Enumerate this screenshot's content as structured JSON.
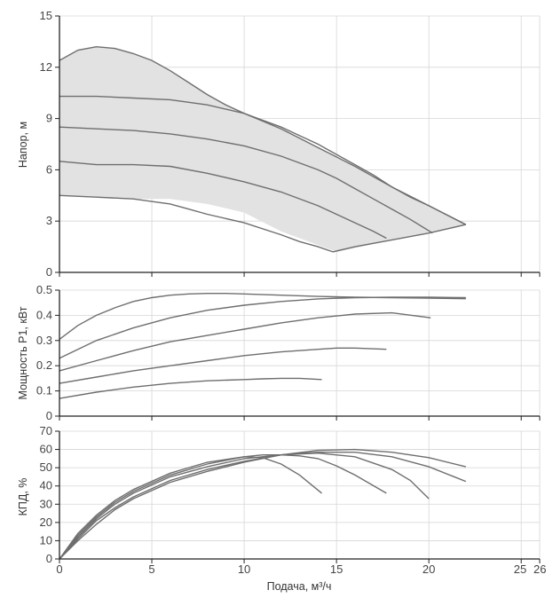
{
  "chart_data": [
    {
      "type": "line",
      "name": "head",
      "ylabel": "Напор, м",
      "ylim": [
        0,
        15
      ],
      "yticks": [
        0,
        3,
        6,
        9,
        12,
        15
      ],
      "envelope": [
        [
          0,
          12.4
        ],
        [
          1,
          13.0
        ],
        [
          2,
          13.2
        ],
        [
          3,
          13.1
        ],
        [
          4,
          12.8
        ],
        [
          5,
          12.4
        ],
        [
          6,
          11.8
        ],
        [
          7,
          11.1
        ],
        [
          8,
          10.4
        ],
        [
          10,
          9.3
        ],
        [
          12,
          8.4
        ],
        [
          14,
          7.3
        ],
        [
          16,
          6.2
        ],
        [
          18,
          5.0
        ],
        [
          20,
          3.9
        ],
        [
          22,
          2.8
        ],
        [
          15,
          1.2
        ],
        [
          12,
          2.4
        ],
        [
          10,
          3.5
        ],
        [
          8,
          4.0
        ],
        [
          6,
          4.3
        ],
        [
          4,
          4.3
        ],
        [
          2,
          4.4
        ],
        [
          0,
          4.5
        ]
      ],
      "series": [
        {
          "name": "max",
          "x": [
            0,
            1,
            2,
            3,
            4,
            5,
            6,
            7,
            8,
            9,
            10,
            11,
            12,
            13,
            14,
            15,
            16,
            17,
            18,
            19,
            20,
            21,
            22
          ],
          "y": [
            12.4,
            13.0,
            13.2,
            13.1,
            12.8,
            12.4,
            11.8,
            11.1,
            10.4,
            9.8,
            9.3,
            8.85,
            8.4,
            7.85,
            7.3,
            6.75,
            6.2,
            5.6,
            5.0,
            4.45,
            3.9,
            3.35,
            2.8
          ]
        },
        {
          "name": "curve-4",
          "x": [
            0,
            2,
            4,
            6,
            8,
            10,
            11,
            12,
            13,
            14,
            15,
            16,
            17,
            18,
            19,
            20,
            21,
            22
          ],
          "y": [
            10.3,
            10.3,
            10.2,
            10.1,
            9.8,
            9.3,
            8.9,
            8.5,
            8.0,
            7.5,
            6.9,
            6.3,
            5.7,
            5.0,
            4.4,
            3.9,
            3.35,
            2.8
          ]
        },
        {
          "name": "curve-3",
          "x": [
            0,
            2,
            4,
            6,
            8,
            10,
            12,
            14,
            15,
            16,
            17,
            18,
            19,
            20.2
          ],
          "y": [
            8.5,
            8.4,
            8.3,
            8.1,
            7.8,
            7.4,
            6.8,
            6.0,
            5.5,
            4.9,
            4.3,
            3.7,
            3.1,
            2.3
          ]
        },
        {
          "name": "curve-2",
          "x": [
            0,
            1,
            2,
            4,
            6,
            8,
            10,
            12,
            14,
            15,
            16,
            17,
            17.7
          ],
          "y": [
            6.5,
            6.4,
            6.3,
            6.3,
            6.2,
            5.8,
            5.3,
            4.7,
            3.9,
            3.4,
            2.9,
            2.4,
            2.0
          ]
        },
        {
          "name": "curve-1",
          "x": [
            0,
            2,
            4,
            6,
            7,
            8,
            10,
            12,
            13,
            14,
            14.8
          ],
          "y": [
            4.5,
            4.4,
            4.3,
            4.0,
            3.7,
            3.4,
            2.9,
            2.2,
            1.8,
            1.5,
            1.2
          ]
        },
        {
          "name": "min-boundary",
          "x": [
            14.8,
            16,
            18,
            20,
            22
          ],
          "y": [
            1.2,
            1.5,
            1.9,
            2.3,
            2.8
          ]
        }
      ]
    },
    {
      "type": "line",
      "name": "power",
      "ylabel": "Мощность P1, кВт",
      "ylim": [
        0,
        0.5
      ],
      "yticks": [
        0,
        0.1,
        0.2,
        0.3,
        0.4,
        0.5
      ],
      "series": [
        {
          "name": "curve-5",
          "x": [
            0,
            1,
            2,
            3,
            4,
            5,
            6,
            7,
            8,
            9,
            10,
            12,
            14,
            16,
            18,
            20,
            22
          ],
          "y": [
            0.305,
            0.36,
            0.4,
            0.43,
            0.455,
            0.47,
            0.48,
            0.485,
            0.487,
            0.487,
            0.485,
            0.48,
            0.475,
            0.472,
            0.47,
            0.468,
            0.466
          ]
        },
        {
          "name": "curve-4",
          "x": [
            0,
            2,
            4,
            6,
            8,
            10,
            12,
            14,
            16,
            18,
            20,
            22
          ],
          "y": [
            0.23,
            0.3,
            0.35,
            0.39,
            0.42,
            0.44,
            0.455,
            0.465,
            0.47,
            0.472,
            0.472,
            0.47
          ]
        },
        {
          "name": "curve-3",
          "x": [
            0,
            2,
            4,
            6,
            8,
            10,
            12,
            14,
            16,
            18,
            20.1
          ],
          "y": [
            0.18,
            0.22,
            0.26,
            0.295,
            0.32,
            0.345,
            0.37,
            0.39,
            0.405,
            0.41,
            0.39
          ]
        },
        {
          "name": "curve-2",
          "x": [
            0,
            2,
            4,
            6,
            8,
            10,
            12,
            14,
            15,
            16,
            17.7
          ],
          "y": [
            0.13,
            0.155,
            0.18,
            0.2,
            0.22,
            0.24,
            0.255,
            0.265,
            0.27,
            0.27,
            0.265
          ]
        },
        {
          "name": "curve-1",
          "x": [
            0,
            2,
            4,
            6,
            8,
            10,
            11,
            12,
            13,
            14.2
          ],
          "y": [
            0.07,
            0.095,
            0.115,
            0.13,
            0.14,
            0.145,
            0.148,
            0.15,
            0.15,
            0.145
          ]
        }
      ]
    },
    {
      "type": "line",
      "name": "efficiency",
      "ylabel": "КПД, %",
      "xlabel": "Подача, м³/ч",
      "ylim": [
        0,
        70
      ],
      "xlim": [
        0,
        26
      ],
      "xticks": [
        0,
        5,
        10,
        15,
        20,
        25,
        26
      ],
      "yticks": [
        0,
        10,
        20,
        30,
        40,
        50,
        60,
        70
      ],
      "series": [
        {
          "name": "curve-5",
          "x": [
            0,
            1,
            2,
            3,
            4,
            6,
            8,
            10,
            12,
            14,
            16,
            18,
            20,
            22
          ],
          "y": [
            0,
            10,
            19,
            27,
            33,
            42,
            48,
            53,
            57,
            59.5,
            60,
            58.5,
            55.5,
            50.5
          ]
        },
        {
          "name": "curve-4",
          "x": [
            0,
            1,
            2,
            3,
            4,
            6,
            8,
            10,
            12,
            14,
            16,
            18,
            20,
            22
          ],
          "y": [
            0,
            11,
            21,
            28,
            34,
            43,
            49,
            53.5,
            57,
            58.5,
            58.5,
            56,
            50.5,
            42.5
          ]
        },
        {
          "name": "curve-3",
          "x": [
            0,
            1,
            2,
            3,
            4,
            6,
            8,
            10,
            12,
            14,
            16,
            18,
            19,
            20
          ],
          "y": [
            0,
            12,
            22,
            30,
            36,
            45,
            50.5,
            55,
            57,
            58,
            56,
            49,
            43,
            33
          ]
        },
        {
          "name": "curve-2",
          "x": [
            0,
            1,
            2,
            3,
            4,
            6,
            8,
            10,
            11,
            12,
            13,
            14,
            15,
            16,
            17.7
          ],
          "y": [
            0,
            13,
            23,
            31,
            37,
            46,
            52,
            56,
            57,
            57,
            56.5,
            55,
            51,
            46,
            36
          ]
        },
        {
          "name": "curve-1",
          "x": [
            0,
            1,
            2,
            3,
            4,
            6,
            8,
            10,
            11,
            12,
            13,
            14.2
          ],
          "y": [
            0,
            14,
            24,
            32,
            38,
            47,
            53,
            56,
            55.5,
            52,
            46,
            36
          ]
        }
      ]
    }
  ]
}
